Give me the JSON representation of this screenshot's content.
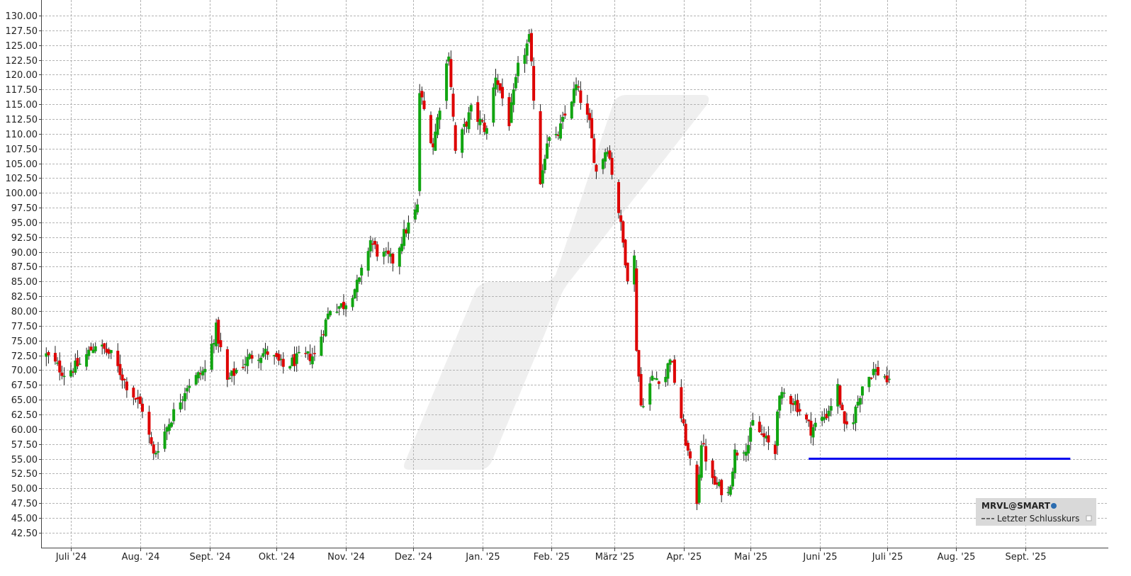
{
  "chart_data": {
    "type": "candlestick",
    "ylim": [
      40.0,
      131.5
    ],
    "y_ticks": [
      "130.00",
      "127.50",
      "125.00",
      "122.50",
      "120.00",
      "117.50",
      "115.00",
      "112.50",
      "110.00",
      "107.50",
      "105.00",
      "102.50",
      "100.00",
      "97.50",
      "95.00",
      "92.50",
      "90.00",
      "87.50",
      "85.00",
      "82.50",
      "80.00",
      "77.50",
      "75.00",
      "72.50",
      "70.00",
      "67.50",
      "65.00",
      "62.50",
      "60.00",
      "57.50",
      "55.00",
      "52.50",
      "50.00",
      "47.50",
      "45.00",
      "42.50"
    ],
    "x_range": [
      "2024-06-18",
      "2025-10-08"
    ],
    "x_months": [
      {
        "date": "2024-07-01",
        "label": "Juli '24"
      },
      {
        "date": "2024-08-01",
        "label": "Aug. '24"
      },
      {
        "date": "2024-09-01",
        "label": "Sept. '24"
      },
      {
        "date": "2024-10-01",
        "label": "Okt. '24"
      },
      {
        "date": "2024-11-01",
        "label": "Nov. '24"
      },
      {
        "date": "2024-12-01",
        "label": "Dez. '24"
      },
      {
        "date": "2025-01-01",
        "label": "Jan. '25"
      },
      {
        "date": "2025-02-01",
        "label": "Feb. '25"
      },
      {
        "date": "2025-03-01",
        "label": "März '25"
      },
      {
        "date": "2025-04-01",
        "label": "Apr. '25"
      },
      {
        "date": "2025-05-01",
        "label": "Mai '25"
      },
      {
        "date": "2025-06-01",
        "label": "Juni '25"
      },
      {
        "date": "2025-07-01",
        "label": "Juli '25"
      },
      {
        "date": "2025-08-01",
        "label": "Aug. '25"
      },
      {
        "date": "2025-09-01",
        "label": "Sept. '25"
      }
    ],
    "keypoints": [
      [
        "2024-06-20",
        72.5
      ],
      [
        "2024-06-28",
        69.5
      ],
      [
        "2024-07-05",
        71.0
      ],
      [
        "2024-07-12",
        74.5
      ],
      [
        "2024-07-19",
        72.5
      ],
      [
        "2024-07-26",
        67.5
      ],
      [
        "2024-08-02",
        63.5
      ],
      [
        "2024-08-07",
        55.5
      ],
      [
        "2024-08-15",
        62.0
      ],
      [
        "2024-08-22",
        67.5
      ],
      [
        "2024-08-30",
        70.0
      ],
      [
        "2024-09-04",
        77.0
      ],
      [
        "2024-09-09",
        68.0
      ],
      [
        "2024-09-13",
        70.0
      ],
      [
        "2024-09-20",
        72.5
      ],
      [
        "2024-09-27",
        73.0
      ],
      [
        "2024-10-04",
        70.5
      ],
      [
        "2024-10-11",
        72.0
      ],
      [
        "2024-10-18",
        72.5
      ],
      [
        "2024-10-25",
        80.5
      ],
      [
        "2024-10-31",
        81.0
      ],
      [
        "2024-11-07",
        85.0
      ],
      [
        "2024-11-12",
        92.0
      ],
      [
        "2024-11-15",
        90.0
      ],
      [
        "2024-11-22",
        88.5
      ],
      [
        "2024-11-27",
        93.0
      ],
      [
        "2024-12-03",
        97.5
      ],
      [
        "2024-12-04",
        117.0
      ],
      [
        "2024-12-10",
        108.0
      ],
      [
        "2024-12-17",
        124.0
      ],
      [
        "2024-12-20",
        107.0
      ],
      [
        "2024-12-27",
        114.0
      ],
      [
        "2025-01-03",
        110.5
      ],
      [
        "2025-01-07",
        120.0
      ],
      [
        "2025-01-13",
        112.0
      ],
      [
        "2025-01-17",
        121.0
      ],
      [
        "2025-01-22",
        126.0
      ],
      [
        "2025-01-27",
        102.0
      ],
      [
        "2025-01-30",
        109.0
      ],
      [
        "2025-02-03",
        109.0
      ],
      [
        "2025-02-07",
        113.0
      ],
      [
        "2025-02-12",
        118.0
      ],
      [
        "2025-02-18",
        111.5
      ],
      [
        "2025-02-21",
        103.5
      ],
      [
        "2025-02-26",
        108.0
      ],
      [
        "2025-03-03",
        97.0
      ],
      [
        "2025-03-07",
        86.0
      ],
      [
        "2025-03-10",
        89.0
      ],
      [
        "2025-03-11",
        74.0
      ],
      [
        "2025-03-13",
        64.0
      ],
      [
        "2025-03-18",
        68.5
      ],
      [
        "2025-03-24",
        69.0
      ],
      [
        "2025-03-26",
        72.5
      ],
      [
        "2025-03-31",
        62.0
      ],
      [
        "2025-04-04",
        54.0
      ],
      [
        "2025-04-07",
        48.0
      ],
      [
        "2025-04-09",
        58.0
      ],
      [
        "2025-04-14",
        51.0
      ],
      [
        "2025-04-21",
        49.0
      ],
      [
        "2025-04-24",
        56.0
      ],
      [
        "2025-04-30",
        57.5
      ],
      [
        "2025-05-02",
        61.0
      ],
      [
        "2025-05-06",
        59.0
      ],
      [
        "2025-05-12",
        56.0
      ],
      [
        "2025-05-13",
        64.0
      ],
      [
        "2025-05-16",
        66.0
      ],
      [
        "2025-05-21",
        64.5
      ],
      [
        "2025-05-28",
        60.0
      ],
      [
        "2025-06-04",
        62.5
      ],
      [
        "2025-06-09",
        67.0
      ],
      [
        "2025-06-12",
        60.0
      ],
      [
        "2025-06-16",
        62.0
      ],
      [
        "2025-06-20",
        67.5
      ],
      [
        "2025-06-25",
        70.0
      ],
      [
        "2025-06-30",
        69.0
      ],
      [
        "2025-07-02",
        67.5
      ]
    ],
    "level_line": {
      "value": 55.0,
      "from": "2025-05-27",
      "to": "2025-09-21",
      "color": "#0000ee"
    },
    "colors": {
      "up": "#11a511",
      "down": "#dd0000",
      "wick": "#222222",
      "grid": "#b4b4b4"
    },
    "legend": {
      "title": "MRVL@SMART",
      "entry": "Letzter Schlusskurs",
      "placement": "bottom-right"
    }
  }
}
